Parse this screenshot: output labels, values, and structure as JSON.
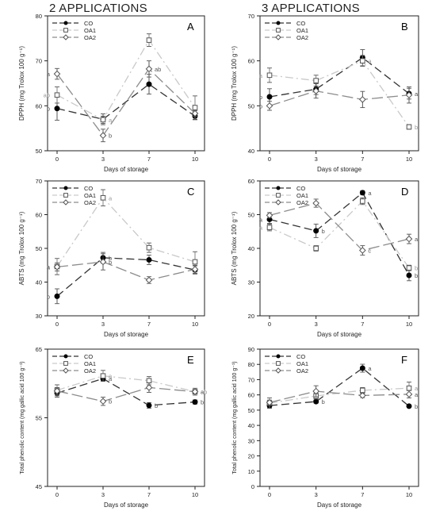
{
  "headings": {
    "left": "2 APPLICATIONS",
    "right": "3 APPLICATIONS"
  },
  "chart_data": [
    {
      "type": "line",
      "panel": "A",
      "x": [
        0,
        3,
        7,
        10
      ],
      "ylabel": "DPPH (mg Trolox 100 g⁻¹)",
      "xlabel": "Days of storage",
      "ylim": [
        50,
        80
      ],
      "yticks": [
        50,
        60,
        70,
        80
      ],
      "series": [
        {
          "name": "CO",
          "values": [
            59.4,
            57.0,
            64.8,
            57.7
          ],
          "err": [
            2.6,
            1.2,
            2.2,
            0.8
          ],
          "letters": [
            "b",
            "",
            "",
            ""
          ]
        },
        {
          "name": "OA1",
          "values": [
            62.4,
            56.9,
            74.6,
            59.6
          ],
          "err": [
            1.8,
            0.8,
            1.4,
            2.6
          ],
          "letters": [
            "ab",
            "a",
            "",
            ""
          ]
        },
        {
          "name": "OA2",
          "values": [
            67.1,
            53.4,
            68.2,
            58.3
          ],
          "err": [
            1.2,
            1.4,
            1.8,
            0.6
          ],
          "letters": [
            "a",
            "b",
            "ab",
            ""
          ]
        }
      ]
    },
    {
      "type": "line",
      "panel": "B",
      "x": [
        0,
        3,
        7,
        10
      ],
      "ylabel": "DPPH (mg Trolox 100 g⁻¹)",
      "xlabel": "Days of storage",
      "ylim": [
        40,
        70
      ],
      "yticks": [
        40,
        50,
        60,
        70
      ],
      "series": [
        {
          "name": "CO",
          "values": [
            52.0,
            53.7,
            60.7,
            52.7
          ],
          "err": [
            1.8,
            1.2,
            1.8,
            1.2
          ],
          "letters": [
            "b",
            "",
            "",
            "a"
          ]
        },
        {
          "name": "OA1",
          "values": [
            56.8,
            55.6,
            60.0,
            45.3
          ],
          "err": [
            1.6,
            1.2,
            1.2,
            0.5
          ],
          "letters": [
            "a",
            "",
            "a",
            "b"
          ]
        },
        {
          "name": "OA2",
          "values": [
            50.0,
            53.3,
            51.4,
            52.4
          ],
          "err": [
            1.0,
            1.6,
            1.8,
            1.8
          ],
          "letters": [
            "b",
            "",
            "",
            ""
          ]
        }
      ]
    },
    {
      "type": "line",
      "panel": "C",
      "x": [
        0,
        3,
        7,
        10
      ],
      "ylabel": "ABTS (mg Trolox 100 g⁻¹)",
      "xlabel": "Days of storage",
      "ylim": [
        30,
        70
      ],
      "yticks": [
        30,
        40,
        50,
        60,
        70
      ],
      "series": [
        {
          "name": "CO",
          "values": [
            35.8,
            47.2,
            46.6,
            43.6
          ],
          "err": [
            2.2,
            1.6,
            1.4,
            1.2
          ],
          "letters": [
            "b",
            "b",
            "",
            ""
          ]
        },
        {
          "name": "OA1",
          "values": [
            44.6,
            65.0,
            50.2,
            46.0
          ],
          "err": [
            2.4,
            2.4,
            1.4,
            3.0
          ],
          "letters": [
            "a",
            "a",
            "",
            ""
          ]
        },
        {
          "name": "OA2",
          "values": [
            44.5,
            46.0,
            40.6,
            43.8
          ],
          "err": [
            1.2,
            2.4,
            1.0,
            1.2
          ],
          "letters": [
            "a",
            "b",
            "",
            ""
          ]
        }
      ]
    },
    {
      "type": "line",
      "panel": "D",
      "x": [
        0,
        3,
        7,
        10
      ],
      "ylabel": "ABTS (mg Trolox 100 g⁻¹)",
      "xlabel": "Days of storage",
      "ylim": [
        20,
        60
      ],
      "yticks": [
        20,
        30,
        40,
        50,
        60
      ],
      "series": [
        {
          "name": "CO",
          "values": [
            48.6,
            45.2,
            56.5,
            32.0
          ],
          "err": [
            1.2,
            2.0,
            0.6,
            1.6
          ],
          "letters": [
            "a",
            "b",
            "a",
            "b"
          ]
        },
        {
          "name": "OA1",
          "values": [
            46.2,
            40.0,
            54.0,
            34.2
          ],
          "err": [
            1.0,
            0.8,
            1.0,
            0.8
          ],
          "letters": [
            "a",
            "",
            "",
            "b"
          ]
        },
        {
          "name": "OA2",
          "values": [
            49.8,
            53.4,
            39.4,
            42.8
          ],
          "err": [
            0.8,
            1.2,
            1.4,
            1.4
          ],
          "letters": [
            "",
            "",
            "c",
            "a"
          ]
        }
      ]
    },
    {
      "type": "line",
      "panel": "E",
      "x": [
        0,
        3,
        7,
        10
      ],
      "ylabel": "Total phenolic content (mg gallic acid 100 g⁻¹)",
      "xlabel": "Days of storage",
      "ylim": [
        45,
        65
      ],
      "yticks": [
        45,
        55,
        65
      ],
      "series": [
        {
          "name": "CO",
          "values": [
            58.6,
            60.7,
            56.8,
            57.3
          ],
          "err": [
            0.6,
            0.3,
            0.4,
            0.3
          ],
          "letters": [
            "",
            "a",
            "b",
            "b"
          ]
        },
        {
          "name": "OA1",
          "values": [
            59.0,
            61.1,
            60.4,
            58.8
          ],
          "err": [
            0.8,
            0.8,
            0.6,
            0.5
          ],
          "letters": [
            "",
            "a",
            "",
            "ab"
          ]
        },
        {
          "name": "OA2",
          "values": [
            58.9,
            57.4,
            59.4,
            58.8
          ],
          "err": [
            0.5,
            0.6,
            0.7,
            0.3
          ],
          "letters": [
            "",
            "b",
            "",
            "a"
          ]
        }
      ]
    },
    {
      "type": "line",
      "panel": "F",
      "x": [
        0,
        3,
        7,
        10
      ],
      "ylabel": "Total phenolic content (mg gallic acid 100 g⁻¹)",
      "xlabel": "Days of storage",
      "ylim": [
        0,
        90
      ],
      "yticks": [
        0,
        10,
        20,
        30,
        40,
        50,
        60,
        70,
        80,
        90
      ],
      "series": [
        {
          "name": "CO",
          "values": [
            53.0,
            55.6,
            77.5,
            52.6
          ],
          "err": [
            1.4,
            1.0,
            2.6,
            0.8
          ],
          "letters": [
            "",
            "b",
            "a",
            "b"
          ]
        },
        {
          "name": "OA1",
          "values": [
            54.6,
            59.3,
            63.0,
            64.4
          ],
          "err": [
            3.4,
            2.0,
            1.8,
            4.0
          ],
          "letters": [
            "",
            "",
            "",
            "a"
          ]
        },
        {
          "name": "OA2",
          "values": [
            55.0,
            62.4,
            59.6,
            60.4
          ],
          "err": [
            1.6,
            3.6,
            1.4,
            2.4
          ],
          "letters": [
            "",
            "",
            "",
            "a"
          ]
        }
      ]
    }
  ],
  "series_style": [
    {
      "name": "CO",
      "color": "#333333",
      "dash": "10,5",
      "marker": "circle",
      "fill": "#000000"
    },
    {
      "name": "OA1",
      "color": "#c9c9c9",
      "dash": "10,4,2,4",
      "marker": "square",
      "fill": "#ffffff"
    },
    {
      "name": "OA2",
      "color": "#8c8c8c",
      "dash": "14,5",
      "marker": "diamond",
      "fill": "#ffffff"
    }
  ]
}
